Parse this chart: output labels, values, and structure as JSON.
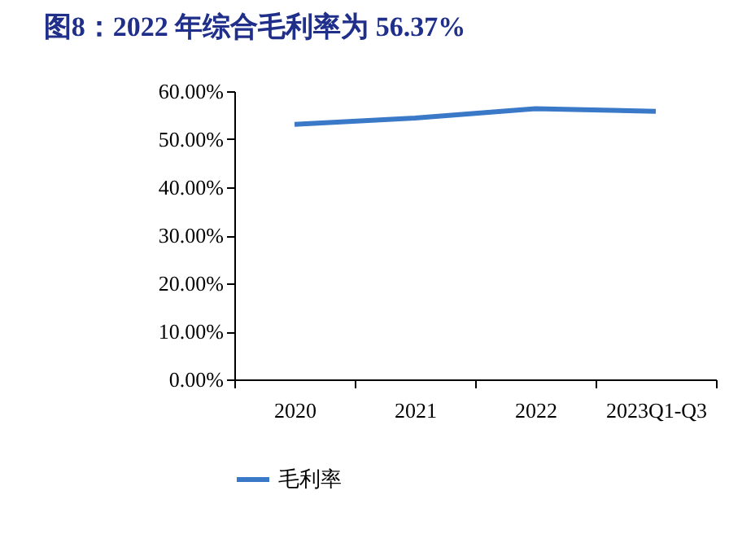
{
  "chart_data": {
    "type": "line",
    "title": "图8：2022 年综合毛利率为 56.37%",
    "categories": [
      "2020",
      "2021",
      "2022",
      "2023Q1-Q3"
    ],
    "series": [
      {
        "name": "毛利率",
        "color": "#3a78c8",
        "values": [
          53.1,
          54.4,
          56.37,
          55.8
        ]
      }
    ],
    "ylim": [
      0,
      60
    ],
    "yticks": [
      {
        "value": 0,
        "label": "0.00%"
      },
      {
        "value": 10,
        "label": "10.00%"
      },
      {
        "value": 20,
        "label": "20.00%"
      },
      {
        "value": 30,
        "label": "30.00%"
      },
      {
        "value": 40,
        "label": "40.00%"
      },
      {
        "value": 50,
        "label": "50.00%"
      },
      {
        "value": 60,
        "label": "60.00%"
      }
    ],
    "grid": false,
    "legend": "bottom",
    "marker": "none",
    "line_style": "solid"
  }
}
